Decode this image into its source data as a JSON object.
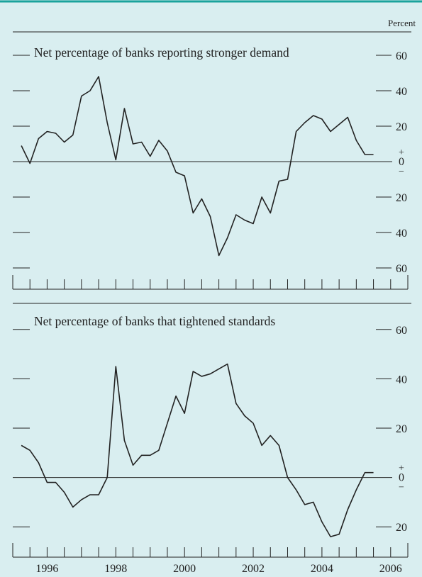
{
  "unit_label": "Percent",
  "chart_data": [
    {
      "type": "line",
      "title": "Net percentage of banks reporting stronger demand",
      "xlim": [
        1995.5,
        2007.0
      ],
      "ylim": [
        -72,
        72
      ],
      "y_ticks": [
        {
          "value": 60,
          "label": "60"
        },
        {
          "value": 40,
          "label": "40"
        },
        {
          "value": 20,
          "label": "20"
        },
        {
          "value": -20,
          "label": "20"
        },
        {
          "value": -40,
          "label": "40"
        },
        {
          "value": -60,
          "label": "60"
        }
      ],
      "zero_marker": {
        "plus": "+",
        "zero": "0",
        "minus": "−"
      },
      "grid": false,
      "series": [
        {
          "x": [
            1995.75,
            1996.0,
            1996.25,
            1996.5,
            1996.75,
            1997.0,
            1997.25,
            1997.5,
            1997.75,
            1998.0,
            1998.25,
            1998.5,
            1998.75,
            1999.0,
            1999.25,
            1999.5,
            1999.75,
            2000.0,
            2000.25,
            2000.5,
            2000.75,
            2001.0,
            2001.25,
            2001.5,
            2001.75,
            2002.0,
            2002.25,
            2002.5,
            2002.75,
            2003.0,
            2003.25,
            2003.5,
            2003.75,
            2004.0,
            2004.25,
            2004.5,
            2004.75,
            2005.0,
            2005.25,
            2005.5,
            2005.75,
            2006.0
          ],
          "y": [
            9,
            -1,
            13,
            17,
            16,
            11,
            15,
            37,
            40,
            48,
            22,
            1,
            30,
            10,
            11,
            3,
            12,
            6,
            -6,
            -8,
            -29,
            -21,
            -31,
            -53,
            -43,
            -30,
            -33,
            -35,
            -20,
            -29,
            -11,
            -10,
            17,
            22,
            26,
            24,
            17,
            21,
            25,
            12,
            4,
            4
          ]
        }
      ]
    },
    {
      "type": "line",
      "title": "Net percentage of banks that tightened standards",
      "xlim": [
        1995.5,
        2007.0
      ],
      "ylim": [
        -32,
        70
      ],
      "x_tick_labels": [
        "1996",
        "1998",
        "2000",
        "2002",
        "2004",
        "2006"
      ],
      "y_ticks": [
        {
          "value": 60,
          "label": "60"
        },
        {
          "value": 40,
          "label": "40"
        },
        {
          "value": 20,
          "label": "20"
        },
        {
          "value": -20,
          "label": "20"
        }
      ],
      "zero_marker": {
        "plus": "+",
        "zero": "0",
        "minus": "−"
      },
      "grid": false,
      "series": [
        {
          "x": [
            1995.75,
            1996.0,
            1996.25,
            1996.5,
            1996.75,
            1997.0,
            1997.25,
            1997.5,
            1997.75,
            1998.0,
            1998.25,
            1998.5,
            1998.75,
            1999.0,
            1999.25,
            1999.5,
            1999.75,
            2000.0,
            2000.25,
            2000.5,
            2000.75,
            2001.0,
            2001.25,
            2001.5,
            2001.75,
            2002.0,
            2002.25,
            2002.5,
            2002.75,
            2003.0,
            2003.25,
            2003.5,
            2003.75,
            2004.0,
            2004.25,
            2004.5,
            2004.75,
            2005.0,
            2005.25,
            2005.5,
            2005.75,
            2006.0
          ],
          "y": [
            13,
            11,
            6,
            -2,
            -2,
            -6,
            -12,
            -9,
            -7,
            -7,
            0,
            45,
            15,
            5,
            9,
            9,
            11,
            22,
            33,
            26,
            43,
            41,
            42,
            44,
            46,
            30,
            25,
            22,
            13,
            17,
            13,
            0,
            -5,
            -11,
            -10,
            -18,
            -24,
            -23,
            -13,
            -5,
            2,
            2
          ]
        }
      ]
    }
  ]
}
